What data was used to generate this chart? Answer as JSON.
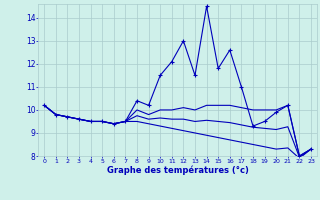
{
  "x": [
    0,
    1,
    2,
    3,
    4,
    5,
    6,
    7,
    8,
    9,
    10,
    11,
    12,
    13,
    14,
    15,
    16,
    17,
    18,
    19,
    20,
    21,
    22,
    23
  ],
  "y_main": [
    10.2,
    9.8,
    9.7,
    9.6,
    9.5,
    9.5,
    9.4,
    9.5,
    10.4,
    10.2,
    11.5,
    12.1,
    13.0,
    11.5,
    14.5,
    11.8,
    12.6,
    11.0,
    9.3,
    9.5,
    9.9,
    10.2,
    8.0,
    8.3
  ],
  "y_low": [
    10.2,
    9.8,
    9.7,
    9.6,
    9.5,
    9.5,
    9.4,
    9.5,
    9.5,
    9.4,
    9.3,
    9.2,
    9.1,
    9.0,
    8.9,
    8.8,
    8.7,
    8.6,
    8.5,
    8.4,
    8.3,
    8.35,
    7.9,
    8.3
  ],
  "y_high": [
    10.2,
    9.8,
    9.7,
    9.6,
    9.5,
    9.5,
    9.4,
    9.5,
    10.0,
    9.8,
    10.0,
    10.0,
    10.1,
    10.0,
    10.2,
    10.2,
    10.2,
    10.1,
    10.0,
    10.0,
    10.0,
    10.2,
    8.0,
    8.3
  ],
  "y_mid": [
    10.2,
    9.8,
    9.7,
    9.6,
    9.5,
    9.5,
    9.4,
    9.5,
    9.75,
    9.6,
    9.65,
    9.6,
    9.6,
    9.5,
    9.55,
    9.5,
    9.45,
    9.35,
    9.25,
    9.2,
    9.15,
    9.27,
    7.95,
    8.3
  ],
  "line_color": "#0000bb",
  "bg_color": "#cff0ea",
  "grid_color": "#aacccc",
  "xlabel": "Graphe des températures (°c)",
  "ylim_min": 8.0,
  "ylim_max": 14.6,
  "yticks": [
    8,
    9,
    10,
    11,
    12,
    13,
    14
  ],
  "xticks": [
    0,
    1,
    2,
    3,
    4,
    5,
    6,
    7,
    8,
    9,
    10,
    11,
    12,
    13,
    14,
    15,
    16,
    17,
    18,
    19,
    20,
    21,
    22,
    23
  ]
}
